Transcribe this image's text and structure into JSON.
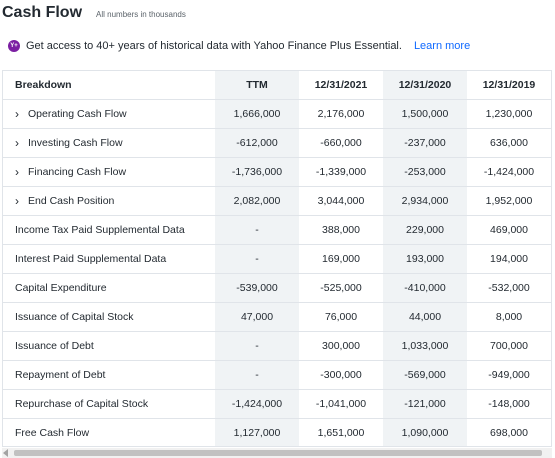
{
  "header": {
    "title": "Cash Flow",
    "subtitle": "All numbers in thousands"
  },
  "promo": {
    "icon": "Y+",
    "text": "Get access to 40+ years of historical data with Yahoo Finance Plus Essential.",
    "link": "Learn more"
  },
  "table": {
    "columns": [
      "Breakdown",
      "TTM",
      "12/31/2021",
      "12/31/2020",
      "12/31/2019"
    ],
    "rows": [
      {
        "label": "Operating Cash Flow",
        "expandable": true,
        "values": [
          "1,666,000",
          "2,176,000",
          "1,500,000",
          "1,230,000"
        ]
      },
      {
        "label": "Investing Cash Flow",
        "expandable": true,
        "values": [
          "-612,000",
          "-660,000",
          "-237,000",
          "636,000"
        ]
      },
      {
        "label": "Financing Cash Flow",
        "expandable": true,
        "values": [
          "-1,736,000",
          "-1,339,000",
          "-253,000",
          "-1,424,000"
        ]
      },
      {
        "label": "End Cash Position",
        "expandable": true,
        "values": [
          "2,082,000",
          "3,044,000",
          "2,934,000",
          "1,952,000"
        ]
      },
      {
        "label": "Income Tax Paid Supplemental Data",
        "expandable": false,
        "values": [
          "-",
          "388,000",
          "229,000",
          "469,000"
        ]
      },
      {
        "label": "Interest Paid Supplemental Data",
        "expandable": false,
        "values": [
          "-",
          "169,000",
          "193,000",
          "194,000"
        ]
      },
      {
        "label": "Capital Expenditure",
        "expandable": false,
        "values": [
          "-539,000",
          "-525,000",
          "-410,000",
          "-532,000"
        ]
      },
      {
        "label": "Issuance of Capital Stock",
        "expandable": false,
        "values": [
          "47,000",
          "76,000",
          "44,000",
          "8,000"
        ]
      },
      {
        "label": "Issuance of Debt",
        "expandable": false,
        "values": [
          "-",
          "300,000",
          "1,033,000",
          "700,000"
        ]
      },
      {
        "label": "Repayment of Debt",
        "expandable": false,
        "values": [
          "-",
          "-300,000",
          "-569,000",
          "-949,000"
        ]
      },
      {
        "label": "Repurchase of Capital Stock",
        "expandable": false,
        "values": [
          "-1,424,000",
          "-1,041,000",
          "-121,000",
          "-148,000"
        ]
      },
      {
        "label": "Free Cash Flow",
        "expandable": false,
        "values": [
          "1,127,000",
          "1,651,000",
          "1,090,000",
          "698,000"
        ]
      }
    ]
  },
  "colors": {
    "accent": "#0f69ff",
    "brand": "#7b1fa2",
    "shaded": "#f0f3f5",
    "border": "#e0e4e9"
  }
}
